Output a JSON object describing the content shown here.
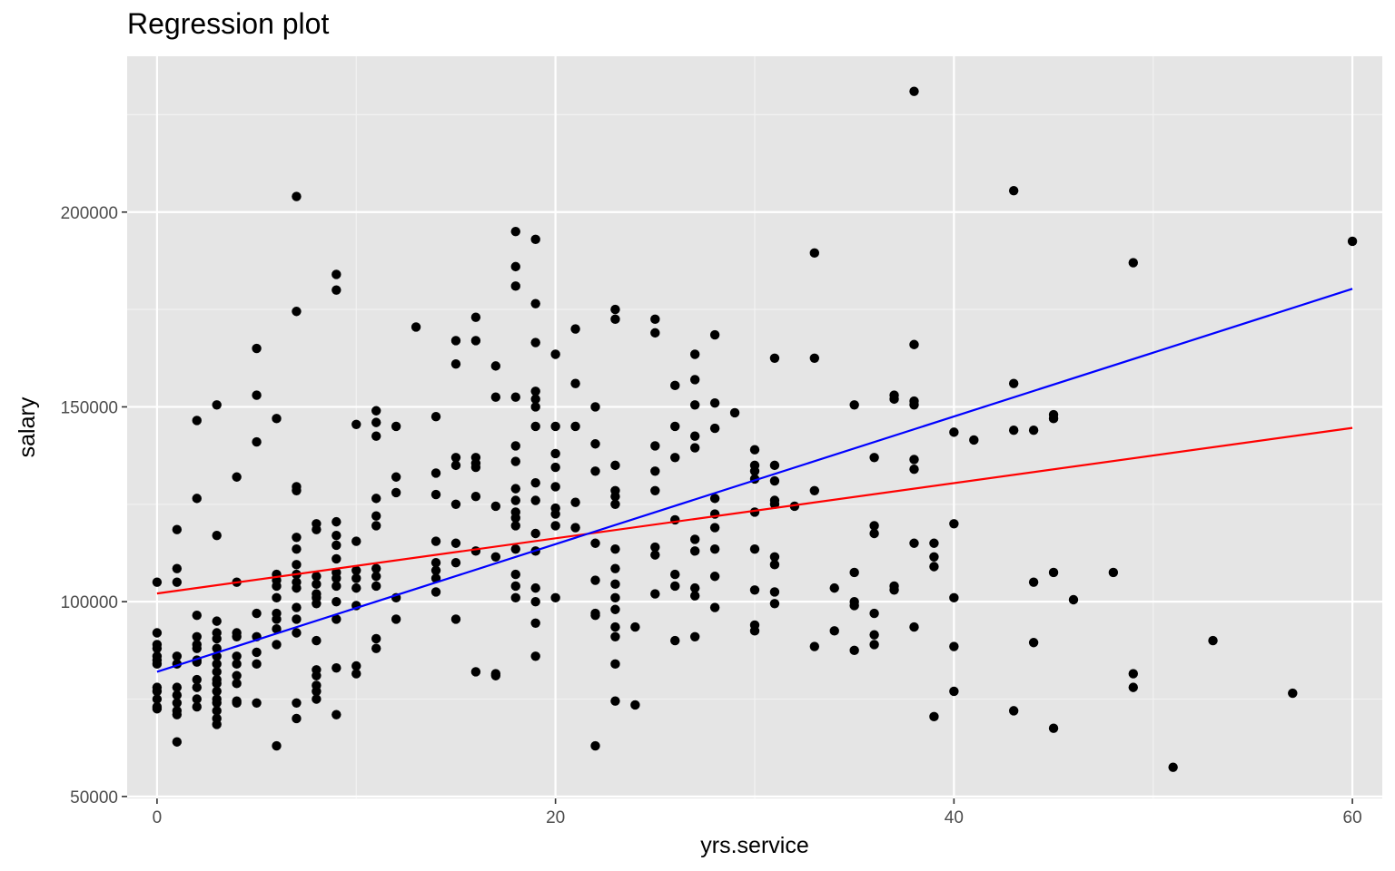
{
  "chart_data": {
    "type": "scatter",
    "title": "Regression plot",
    "xlabel": "yrs.service",
    "ylabel": "salary",
    "xlim": [
      -1.5,
      61.5
    ],
    "ylim": [
      49500,
      240000
    ],
    "x_ticks": [
      0,
      20,
      40,
      60
    ],
    "x_tick_labels": [
      "0",
      "20",
      "40",
      "60"
    ],
    "y_ticks": [
      50000,
      100000,
      150000,
      200000
    ],
    "y_tick_labels": [
      "50000",
      "100000",
      "150000",
      "200000"
    ],
    "grid": true,
    "panel_color": "#e5e5e5",
    "point_color": "#000000",
    "lines": [
      {
        "color": "#ff0000",
        "x": [
          0,
          60
        ],
        "y": [
          102100,
          144600
        ]
      },
      {
        "color": "#0000ff",
        "x": [
          0,
          60
        ],
        "y": [
          82000,
          180300
        ]
      }
    ],
    "points": [
      [
        0,
        105000
      ],
      [
        0,
        92000
      ],
      [
        0,
        89000
      ],
      [
        0,
        88000
      ],
      [
        0,
        86000
      ],
      [
        0,
        85000
      ],
      [
        0,
        84000
      ],
      [
        0,
        78000
      ],
      [
        0,
        77000
      ],
      [
        0,
        75000
      ],
      [
        0,
        73000
      ],
      [
        0,
        72500
      ],
      [
        1,
        118500
      ],
      [
        1,
        108500
      ],
      [
        1,
        105000
      ],
      [
        1,
        86000
      ],
      [
        1,
        84000
      ],
      [
        1,
        78000
      ],
      [
        1,
        76000
      ],
      [
        1,
        74000
      ],
      [
        1,
        72000
      ],
      [
        1,
        71000
      ],
      [
        1,
        64000
      ],
      [
        2,
        146500
      ],
      [
        2,
        126500
      ],
      [
        2,
        96500
      ],
      [
        2,
        91000
      ],
      [
        2,
        89000
      ],
      [
        2,
        88000
      ],
      [
        2,
        85000
      ],
      [
        2,
        84500
      ],
      [
        2,
        80000
      ],
      [
        2,
        78000
      ],
      [
        2,
        75000
      ],
      [
        2,
        73000
      ],
      [
        3,
        150500
      ],
      [
        3,
        117000
      ],
      [
        3,
        95000
      ],
      [
        3,
        92000
      ],
      [
        3,
        90500
      ],
      [
        3,
        88000
      ],
      [
        3,
        86000
      ],
      [
        3,
        84000
      ],
      [
        3,
        82000
      ],
      [
        3,
        80000
      ],
      [
        3,
        79000
      ],
      [
        3,
        77000
      ],
      [
        3,
        75000
      ],
      [
        3,
        74000
      ],
      [
        3,
        72000
      ],
      [
        3,
        70000
      ],
      [
        3,
        68500
      ],
      [
        4,
        132000
      ],
      [
        4,
        105000
      ],
      [
        4,
        92000
      ],
      [
        4,
        91000
      ],
      [
        4,
        86000
      ],
      [
        4,
        84000
      ],
      [
        4,
        81000
      ],
      [
        4,
        79000
      ],
      [
        4,
        74500
      ],
      [
        4,
        74000
      ],
      [
        5,
        165000
      ],
      [
        5,
        153000
      ],
      [
        5,
        141000
      ],
      [
        5,
        97000
      ],
      [
        5,
        91000
      ],
      [
        5,
        87000
      ],
      [
        5,
        84000
      ],
      [
        5,
        74000
      ],
      [
        6,
        147000
      ],
      [
        6,
        107000
      ],
      [
        6,
        105500
      ],
      [
        6,
        104000
      ],
      [
        6,
        101000
      ],
      [
        6,
        97000
      ],
      [
        6,
        95500
      ],
      [
        6,
        93000
      ],
      [
        6,
        89000
      ],
      [
        6,
        63000
      ],
      [
        7,
        204000
      ],
      [
        7,
        174500
      ],
      [
        7,
        129500
      ],
      [
        7,
        128500
      ],
      [
        7,
        116500
      ],
      [
        7,
        113500
      ],
      [
        7,
        109500
      ],
      [
        7,
        107000
      ],
      [
        7,
        105000
      ],
      [
        7,
        103500
      ],
      [
        7,
        98500
      ],
      [
        7,
        95500
      ],
      [
        7,
        92000
      ],
      [
        7,
        74000
      ],
      [
        7,
        70000
      ],
      [
        8,
        120000
      ],
      [
        8,
        118500
      ],
      [
        8,
        106500
      ],
      [
        8,
        104500
      ],
      [
        8,
        102000
      ],
      [
        8,
        101000
      ],
      [
        8,
        99500
      ],
      [
        8,
        90000
      ],
      [
        8,
        82500
      ],
      [
        8,
        81000
      ],
      [
        8,
        78500
      ],
      [
        8,
        77000
      ],
      [
        8,
        75000
      ],
      [
        9,
        184000
      ],
      [
        9,
        180000
      ],
      [
        9,
        120500
      ],
      [
        9,
        117000
      ],
      [
        9,
        114500
      ],
      [
        9,
        111000
      ],
      [
        9,
        107500
      ],
      [
        9,
        106000
      ],
      [
        9,
        104000
      ],
      [
        9,
        100000
      ],
      [
        9,
        95500
      ],
      [
        9,
        83000
      ],
      [
        9,
        71000
      ],
      [
        10,
        145500
      ],
      [
        10,
        115500
      ],
      [
        10,
        108000
      ],
      [
        10,
        106000
      ],
      [
        10,
        103500
      ],
      [
        10,
        99000
      ],
      [
        10,
        83500
      ],
      [
        10,
        81500
      ],
      [
        11,
        149000
      ],
      [
        11,
        146000
      ],
      [
        11,
        142500
      ],
      [
        11,
        126500
      ],
      [
        11,
        122000
      ],
      [
        11,
        119500
      ],
      [
        11,
        108500
      ],
      [
        11,
        106500
      ],
      [
        11,
        104000
      ],
      [
        11,
        90500
      ],
      [
        11,
        88000
      ],
      [
        12,
        145000
      ],
      [
        12,
        132000
      ],
      [
        12,
        128000
      ],
      [
        12,
        101000
      ],
      [
        12,
        95500
      ],
      [
        13,
        170500
      ],
      [
        14,
        147500
      ],
      [
        14,
        133000
      ],
      [
        14,
        127500
      ],
      [
        14,
        115500
      ],
      [
        14,
        110000
      ],
      [
        14,
        108000
      ],
      [
        14,
        106000
      ],
      [
        14,
        102500
      ],
      [
        15,
        167000
      ],
      [
        15,
        161000
      ],
      [
        15,
        137000
      ],
      [
        15,
        135000
      ],
      [
        15,
        125000
      ],
      [
        15,
        115000
      ],
      [
        15,
        110000
      ],
      [
        15,
        95500
      ],
      [
        16,
        173000
      ],
      [
        16,
        167000
      ],
      [
        16,
        137000
      ],
      [
        16,
        135500
      ],
      [
        16,
        134500
      ],
      [
        16,
        127000
      ],
      [
        16,
        113000
      ],
      [
        16,
        82000
      ],
      [
        17,
        160500
      ],
      [
        17,
        152500
      ],
      [
        17,
        124500
      ],
      [
        17,
        111500
      ],
      [
        17,
        81500
      ],
      [
        17,
        81000
      ],
      [
        18,
        195000
      ],
      [
        18,
        186000
      ],
      [
        18,
        181000
      ],
      [
        18,
        152500
      ],
      [
        18,
        140000
      ],
      [
        18,
        136000
      ],
      [
        18,
        129000
      ],
      [
        18,
        126000
      ],
      [
        18,
        123000
      ],
      [
        18,
        121500
      ],
      [
        18,
        119500
      ],
      [
        18,
        113500
      ],
      [
        18,
        107000
      ],
      [
        18,
        104000
      ],
      [
        18,
        101000
      ],
      [
        19,
        193000
      ],
      [
        19,
        176500
      ],
      [
        19,
        166500
      ],
      [
        19,
        154000
      ],
      [
        19,
        152000
      ],
      [
        19,
        150000
      ],
      [
        19,
        145000
      ],
      [
        19,
        130500
      ],
      [
        19,
        126000
      ],
      [
        19,
        117500
      ],
      [
        19,
        113000
      ],
      [
        19,
        103500
      ],
      [
        19,
        100000
      ],
      [
        19,
        94500
      ],
      [
        19,
        86000
      ],
      [
        20,
        163500
      ],
      [
        20,
        145000
      ],
      [
        20,
        138000
      ],
      [
        20,
        134500
      ],
      [
        20,
        129500
      ],
      [
        20,
        124000
      ],
      [
        20,
        122500
      ],
      [
        20,
        119500
      ],
      [
        20,
        101000
      ],
      [
        21,
        170000
      ],
      [
        21,
        156000
      ],
      [
        21,
        145000
      ],
      [
        21,
        125500
      ],
      [
        21,
        119000
      ],
      [
        22,
        150000
      ],
      [
        22,
        140500
      ],
      [
        22,
        133500
      ],
      [
        22,
        115000
      ],
      [
        22,
        105500
      ],
      [
        22,
        97000
      ],
      [
        22,
        96500
      ],
      [
        22,
        63000
      ],
      [
        23,
        175000
      ],
      [
        23,
        172500
      ],
      [
        23,
        135000
      ],
      [
        23,
        128500
      ],
      [
        23,
        127000
      ],
      [
        23,
        125000
      ],
      [
        23,
        113500
      ],
      [
        23,
        108500
      ],
      [
        23,
        104500
      ],
      [
        23,
        101000
      ],
      [
        23,
        98000
      ],
      [
        23,
        93500
      ],
      [
        23,
        91000
      ],
      [
        23,
        84000
      ],
      [
        23,
        74500
      ],
      [
        24,
        93500
      ],
      [
        24,
        73500
      ],
      [
        25,
        172500
      ],
      [
        25,
        169000
      ],
      [
        25,
        140000
      ],
      [
        25,
        133500
      ],
      [
        25,
        128500
      ],
      [
        25,
        114000
      ],
      [
        25,
        112000
      ],
      [
        25,
        102000
      ],
      [
        26,
        155500
      ],
      [
        26,
        145000
      ],
      [
        26,
        137000
      ],
      [
        26,
        121000
      ],
      [
        26,
        107000
      ],
      [
        26,
        104000
      ],
      [
        26,
        90000
      ],
      [
        27,
        163500
      ],
      [
        27,
        157000
      ],
      [
        27,
        150500
      ],
      [
        27,
        142500
      ],
      [
        27,
        139500
      ],
      [
        27,
        116000
      ],
      [
        27,
        113000
      ],
      [
        27,
        103500
      ],
      [
        27,
        101500
      ],
      [
        27,
        91000
      ],
      [
        28,
        168500
      ],
      [
        28,
        151000
      ],
      [
        28,
        144500
      ],
      [
        28,
        126500
      ],
      [
        28,
        122500
      ],
      [
        28,
        119000
      ],
      [
        28,
        113500
      ],
      [
        28,
        106500
      ],
      [
        28,
        98500
      ],
      [
        29,
        148500
      ],
      [
        30,
        139000
      ],
      [
        30,
        135000
      ],
      [
        30,
        133500
      ],
      [
        30,
        131500
      ],
      [
        30,
        123000
      ],
      [
        30,
        113500
      ],
      [
        30,
        103000
      ],
      [
        30,
        94000
      ],
      [
        30,
        92500
      ],
      [
        31,
        162500
      ],
      [
        31,
        135000
      ],
      [
        31,
        131000
      ],
      [
        31,
        126000
      ],
      [
        31,
        125000
      ],
      [
        31,
        111500
      ],
      [
        31,
        109500
      ],
      [
        31,
        102500
      ],
      [
        31,
        99500
      ],
      [
        32,
        124500
      ],
      [
        33,
        189500
      ],
      [
        33,
        162500
      ],
      [
        33,
        128500
      ],
      [
        33,
        88500
      ],
      [
        34,
        103500
      ],
      [
        34,
        92500
      ],
      [
        35,
        150500
      ],
      [
        35,
        107500
      ],
      [
        35,
        100000
      ],
      [
        35,
        99000
      ],
      [
        35,
        87500
      ],
      [
        36,
        137000
      ],
      [
        36,
        119500
      ],
      [
        36,
        117500
      ],
      [
        36,
        97000
      ],
      [
        36,
        91500
      ],
      [
        36,
        89000
      ],
      [
        37,
        153000
      ],
      [
        37,
        152000
      ],
      [
        37,
        104000
      ],
      [
        37,
        103000
      ],
      [
        38,
        231000
      ],
      [
        38,
        166000
      ],
      [
        38,
        151500
      ],
      [
        38,
        150500
      ],
      [
        38,
        136500
      ],
      [
        38,
        134000
      ],
      [
        38,
        115000
      ],
      [
        38,
        93500
      ],
      [
        39,
        115000
      ],
      [
        39,
        111500
      ],
      [
        39,
        109000
      ],
      [
        39,
        70500
      ],
      [
        40,
        143500
      ],
      [
        40,
        120000
      ],
      [
        40,
        101000
      ],
      [
        40,
        88500
      ],
      [
        40,
        77000
      ],
      [
        41,
        141500
      ],
      [
        43,
        205500
      ],
      [
        43,
        156000
      ],
      [
        43,
        144000
      ],
      [
        43,
        72000
      ],
      [
        44,
        144000
      ],
      [
        44,
        105000
      ],
      [
        44,
        89500
      ],
      [
        45,
        148000
      ],
      [
        45,
        147000
      ],
      [
        45,
        107500
      ],
      [
        45,
        67500
      ],
      [
        46,
        100500
      ],
      [
        48,
        107500
      ],
      [
        49,
        187000
      ],
      [
        49,
        81500
      ],
      [
        49,
        78000
      ],
      [
        51,
        57500
      ],
      [
        53,
        90000
      ],
      [
        57,
        76500
      ],
      [
        60,
        192500
      ]
    ]
  }
}
